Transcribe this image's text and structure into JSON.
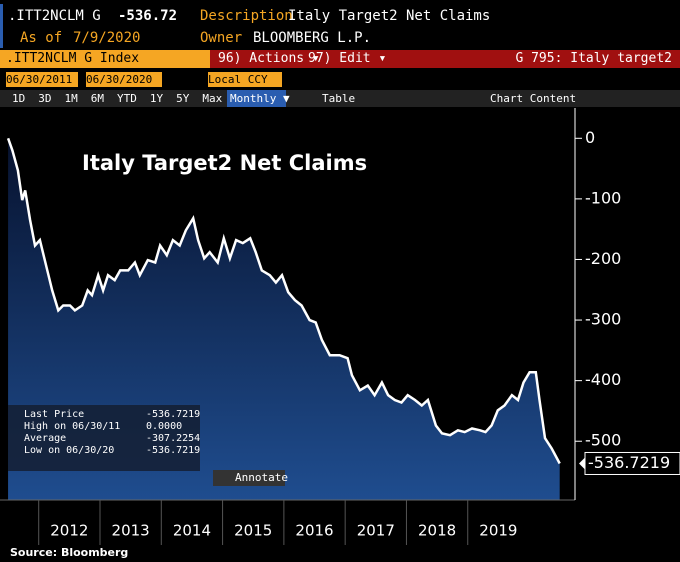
{
  "ui": {
    "ticker": ".ITT2NCLM G",
    "price": "-536.72",
    "desc_label": "Description",
    "desc": "Italy Target2 Net Claims",
    "asof_label": "As of",
    "asof": "7/9/2020",
    "owner_label": "Owner",
    "owner": "BLOOMBERG L.P.",
    "security": ".ITT2NCLM G Index",
    "actions": "96) Actions ▾",
    "edit": "97) Edit ▾",
    "page": "G 795: Italy target2",
    "start": "06/30/2011",
    "end": "06/30/2020",
    "ccy": "Local CCY",
    "periods": [
      "1D",
      "3D",
      "1M",
      "6M",
      "YTD",
      "1Y",
      "5Y",
      "Max"
    ],
    "freq": "Monthly ▼",
    "table": "Table",
    "content": "Chart Content",
    "annotate": "Annotate",
    "source": "Source: Bloomberg"
  },
  "chart_data": {
    "type": "line",
    "title": "Italy Target2 Net Claims",
    "color": "#ffffff",
    "x": [
      2011.5,
      2011.57,
      2011.66,
      2011.73,
      2011.78,
      2011.86,
      2011.94,
      2012.02,
      2012.12,
      2012.22,
      2012.32,
      2012.4,
      2012.51,
      2012.59,
      2012.71,
      2012.8,
      2012.87,
      2012.97,
      2013.05,
      2013.13,
      2013.24,
      2013.33,
      2013.46,
      2013.57,
      2013.65,
      2013.78,
      2013.9,
      2013.98,
      2014.09,
      2014.19,
      2014.3,
      2014.4,
      2014.52,
      2014.6,
      2014.7,
      2014.79,
      2014.92,
      2015.02,
      2015.12,
      2015.22,
      2015.33,
      2015.45,
      2015.54,
      2015.64,
      2015.77,
      2015.87,
      2015.97,
      2016.07,
      2016.18,
      2016.29,
      2016.42,
      2016.52,
      2016.62,
      2016.75,
      2016.91,
      2017.04,
      2017.11,
      2017.24,
      2017.37,
      2017.48,
      2017.6,
      2017.7,
      2017.81,
      2017.92,
      2018.02,
      2018.14,
      2018.25,
      2018.35,
      2018.48,
      2018.58,
      2018.71,
      2018.84,
      2018.95,
      2019.07,
      2019.2,
      2019.29,
      2019.39,
      2019.49,
      2019.6,
      2019.72,
      2019.82,
      2019.91,
      2020.01,
      2020.11,
      2020.17,
      2020.26,
      2020.37,
      2020.5
    ],
    "values": [
      0,
      -20,
      -53,
      -102,
      -86,
      -135,
      -177,
      -168,
      -210,
      -251,
      -284,
      -276,
      -276,
      -284,
      -276,
      -251,
      -259,
      -226,
      -251,
      -226,
      -234,
      -218,
      -218,
      -205,
      -226,
      -201,
      -205,
      -177,
      -193,
      -168,
      -177,
      -152,
      -132,
      -168,
      -198,
      -188,
      -205,
      -165,
      -198,
      -168,
      -173,
      -165,
      -188,
      -218,
      -226,
      -238,
      -226,
      -254,
      -267,
      -276,
      -300,
      -304,
      -333,
      -358,
      -358,
      -363,
      -391,
      -416,
      -408,
      -424,
      -403,
      -424,
      -432,
      -436,
      -424,
      -432,
      -441,
      -432,
      -474,
      -487,
      -490,
      -482,
      -485,
      -479,
      -482,
      -485,
      -474,
      -449,
      -441,
      -424,
      -432,
      -403,
      -386,
      -386,
      -432,
      -495,
      -512,
      -536.7219
    ],
    "xlim": [
      2011.45,
      2020.75
    ],
    "xticks": [
      2012,
      2013,
      2014,
      2015,
      2016,
      2017,
      2018,
      2019
    ],
    "ylim": [
      -597,
      50
    ],
    "yticks": [
      0,
      -100,
      -200,
      -300,
      -400,
      -500
    ],
    "last_label": "-536.7219",
    "legend": [
      {
        "label": "Last Price",
        "value": "-536.7219"
      },
      {
        "label": "High on 06/30/11",
        "value": "0.0000"
      },
      {
        "label": "Average",
        "value": "-307.2254"
      },
      {
        "label": "Low on 06/30/20",
        "value": "-536.7219"
      }
    ]
  }
}
